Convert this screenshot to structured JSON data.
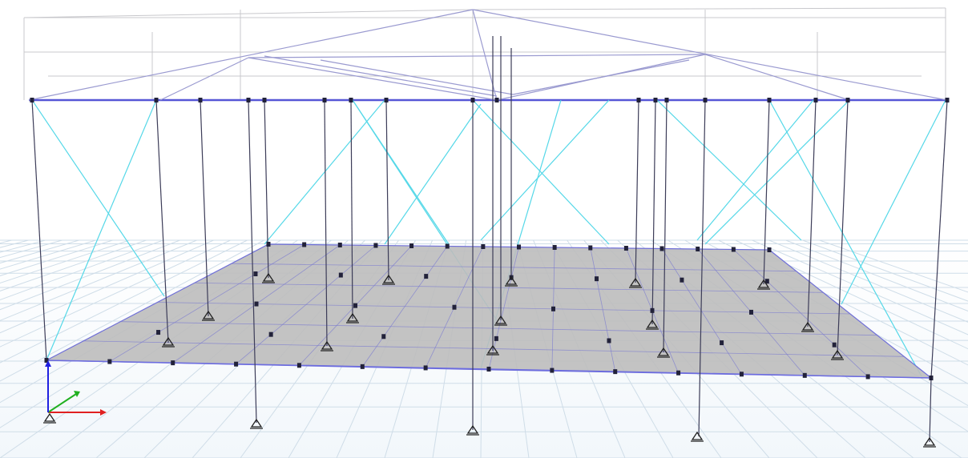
{
  "view": {
    "type": "3d-structural-model-view",
    "colors": {
      "background": "#ffffff",
      "ground_grid": "#cfdde8",
      "beams": "#6c6ce0",
      "columns": "#3c3c58",
      "braces": "#55d8e8",
      "slab": "#bdbdbd",
      "ghost_frame": "#c8c8cc"
    },
    "axes_triad": {
      "x_color": "#e02020",
      "y_color": "#20b020",
      "z_color": "#2020e0",
      "icon": "axes-triad-icon"
    },
    "support_icon": "pin-support-icon",
    "node_icon": "joint-icon"
  }
}
